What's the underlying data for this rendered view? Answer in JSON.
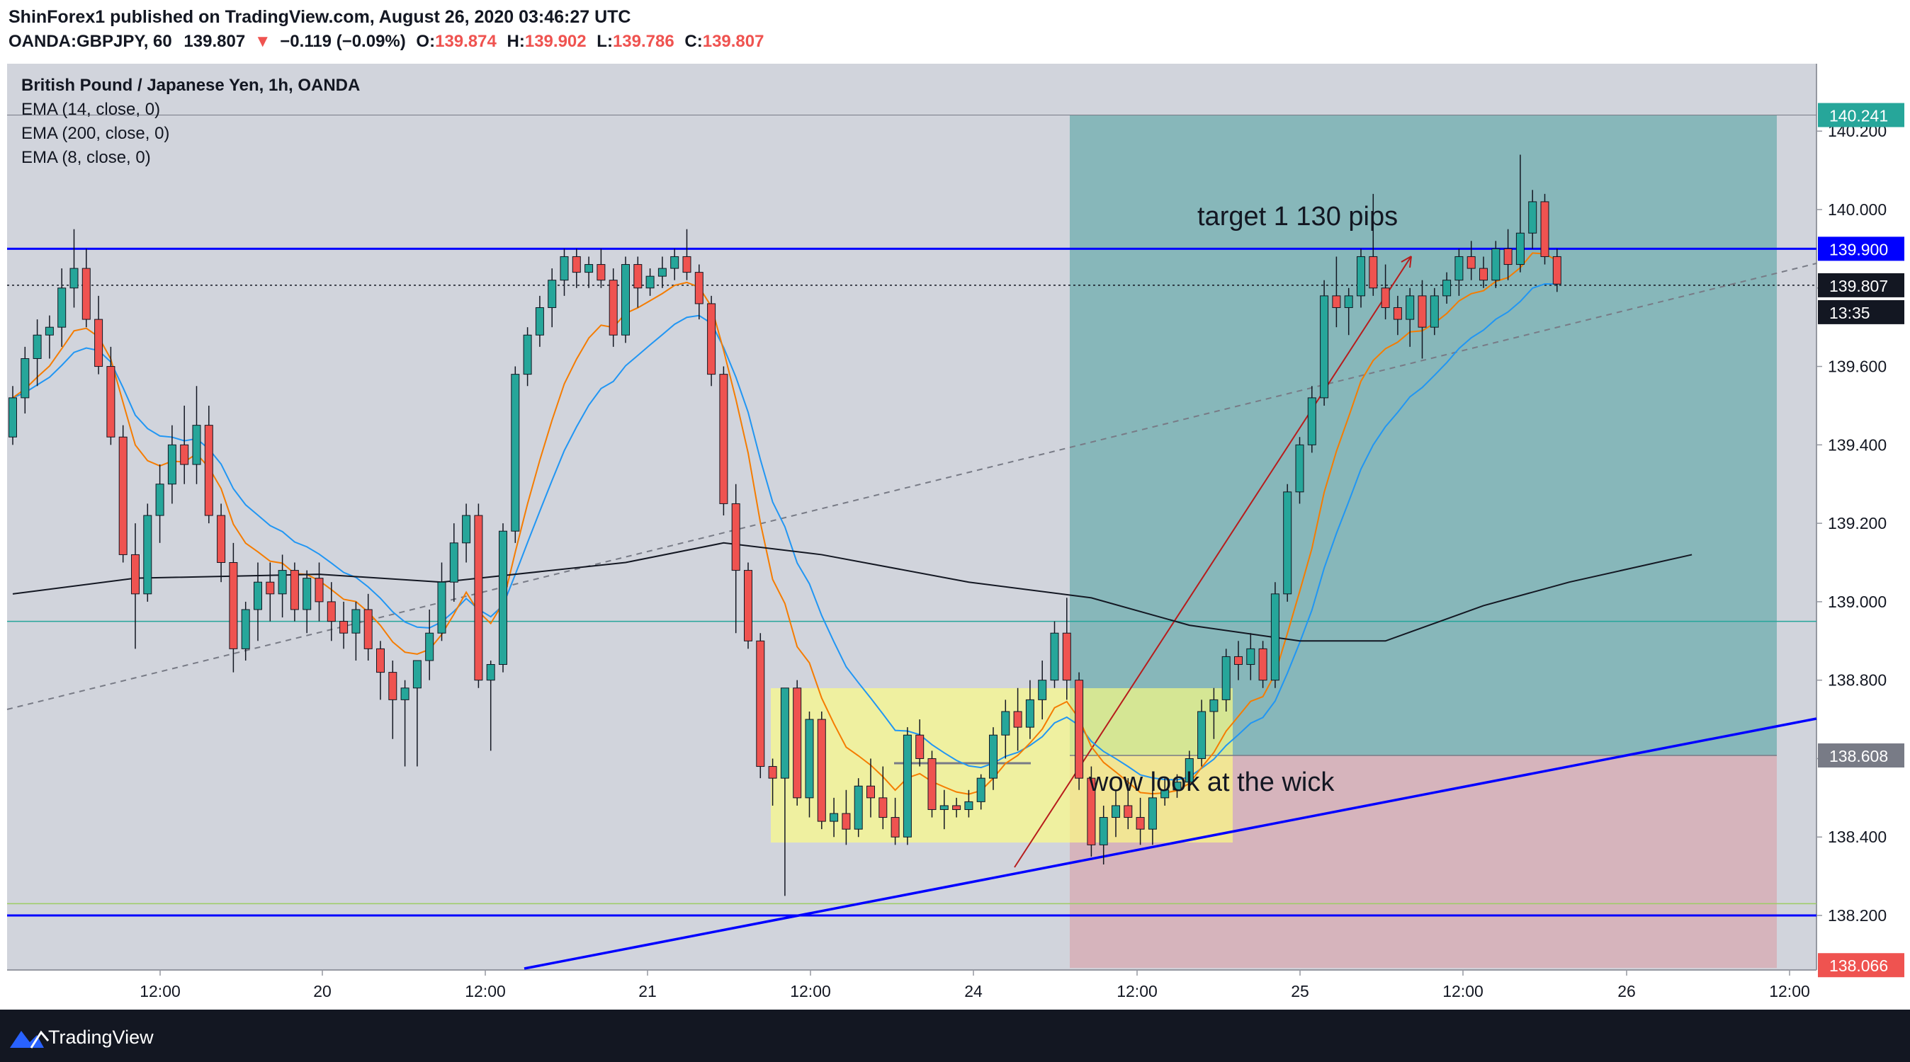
{
  "header": {
    "publisher_line": "ShinForex1 published on TradingView.com, August 26, 2020 03:46:27 UTC",
    "symbol": "OANDA:GBPJPY, 60",
    "last": "139.807",
    "change": "−0.119 (−0.09%)",
    "o_label": "O:",
    "o": "139.874",
    "h_label": "H:",
    "h": "139.902",
    "l_label": "L:",
    "l": "139.786",
    "c_label": "C:",
    "c": "139.807"
  },
  "legend": {
    "title": "British Pound / Japanese Yen, 1h, OANDA",
    "ema1": "EMA (14, close, 0)",
    "ema2": "EMA (200, close, 0)",
    "ema3": "EMA (8, close, 0)"
  },
  "annotations": {
    "target": "target 1 130 pips",
    "wick": "wow look at the wick"
  },
  "badges": {
    "top": "140.241",
    "resistance": "139.900",
    "current": "139.807",
    "countdown": "13:35",
    "entry": "138.608",
    "stop": "138.066"
  },
  "footer": {
    "brand": "TradingView"
  },
  "colors": {
    "bg": "#d1d4dc",
    "up": "#26a69a",
    "down": "#ef5350",
    "ema14": "#2196f3",
    "ema8": "#f57c00",
    "ema200": "#131722",
    "hline": "#0000ff",
    "profit": "#4a9f9f",
    "loss": "#d99ea6",
    "zone": "#ffff80"
  },
  "chart_data": {
    "type": "candlestick",
    "title": "British Pound / Japanese Yen, 1h, OANDA",
    "ylim": [
      138.02,
      140.32
    ],
    "y_ticks": [
      "140.200",
      "140.000",
      "139.800",
      "139.600",
      "139.400",
      "139.200",
      "139.000",
      "138.800",
      "138.600",
      "138.400",
      "138.200"
    ],
    "x_ticks": [
      "12:00",
      "20",
      "12:00",
      "21",
      "12:00",
      "24",
      "12:00",
      "25",
      "12:00",
      "26",
      "12:00"
    ],
    "candles_x": [
      "Aug 19 02:00",
      "Aug 26 05:00"
    ],
    "candles": [
      [
        139.42,
        139.55,
        139.4,
        139.52
      ],
      [
        139.52,
        139.65,
        139.48,
        139.62
      ],
      [
        139.62,
        139.72,
        139.55,
        139.68
      ],
      [
        139.68,
        139.73,
        139.62,
        139.7
      ],
      [
        139.7,
        139.85,
        139.65,
        139.8
      ],
      [
        139.8,
        139.95,
        139.75,
        139.85
      ],
      [
        139.85,
        139.9,
        139.7,
        139.72
      ],
      [
        139.72,
        139.78,
        139.58,
        139.6
      ],
      [
        139.6,
        139.65,
        139.4,
        139.42
      ],
      [
        139.42,
        139.45,
        139.1,
        139.12
      ],
      [
        139.12,
        139.2,
        138.88,
        139.02
      ],
      [
        139.02,
        139.25,
        139.0,
        139.22
      ],
      [
        139.22,
        139.35,
        139.15,
        139.3
      ],
      [
        139.3,
        139.45,
        139.25,
        139.4
      ],
      [
        139.4,
        139.5,
        139.3,
        139.35
      ],
      [
        139.35,
        139.55,
        139.3,
        139.45
      ],
      [
        139.45,
        139.5,
        139.2,
        139.22
      ],
      [
        139.22,
        139.25,
        139.05,
        139.1
      ],
      [
        139.1,
        139.15,
        138.82,
        138.88
      ],
      [
        138.88,
        139.0,
        138.85,
        138.98
      ],
      [
        138.98,
        139.1,
        138.9,
        139.05
      ],
      [
        139.05,
        139.1,
        138.95,
        139.02
      ],
      [
        139.02,
        139.12,
        138.96,
        139.08
      ],
      [
        139.08,
        139.1,
        138.95,
        138.98
      ],
      [
        138.98,
        139.08,
        138.92,
        139.06
      ],
      [
        139.06,
        139.1,
        138.95,
        139.0
      ],
      [
        139.0,
        139.05,
        138.9,
        138.95
      ],
      [
        138.95,
        139.0,
        138.88,
        138.92
      ],
      [
        138.92,
        139.0,
        138.85,
        138.98
      ],
      [
        138.98,
        139.02,
        138.85,
        138.88
      ],
      [
        138.88,
        138.9,
        138.75,
        138.82
      ],
      [
        138.82,
        138.85,
        138.65,
        138.75
      ],
      [
        138.75,
        138.8,
        138.58,
        138.78
      ],
      [
        138.78,
        138.85,
        138.58,
        138.85
      ],
      [
        138.85,
        138.98,
        138.8,
        138.92
      ],
      [
        138.92,
        139.1,
        138.9,
        139.05
      ],
      [
        139.05,
        139.2,
        139.0,
        139.15
      ],
      [
        139.15,
        139.25,
        139.1,
        139.22
      ],
      [
        139.22,
        139.25,
        138.78,
        138.8
      ],
      [
        138.8,
        138.85,
        138.62,
        138.84
      ],
      [
        138.84,
        139.2,
        138.82,
        139.18
      ],
      [
        139.18,
        139.6,
        139.15,
        139.58
      ],
      [
        139.58,
        139.7,
        139.55,
        139.68
      ],
      [
        139.68,
        139.78,
        139.65,
        139.75
      ],
      [
        139.75,
        139.85,
        139.7,
        139.82
      ],
      [
        139.82,
        139.9,
        139.78,
        139.88
      ],
      [
        139.88,
        139.9,
        139.8,
        139.84
      ],
      [
        139.84,
        139.88,
        139.8,
        139.86
      ],
      [
        139.86,
        139.9,
        139.8,
        139.82
      ],
      [
        139.82,
        139.85,
        139.65,
        139.68
      ],
      [
        139.68,
        139.88,
        139.66,
        139.86
      ],
      [
        139.86,
        139.88,
        139.75,
        139.8
      ],
      [
        139.8,
        139.85,
        139.78,
        139.83
      ],
      [
        139.83,
        139.88,
        139.8,
        139.85
      ],
      [
        139.85,
        139.9,
        139.82,
        139.88
      ],
      [
        139.88,
        139.95,
        139.82,
        139.84
      ],
      [
        139.84,
        139.86,
        139.72,
        139.76
      ],
      [
        139.76,
        139.78,
        139.55,
        139.58
      ],
      [
        139.58,
        139.6,
        139.22,
        139.25
      ],
      [
        139.25,
        139.3,
        138.92,
        139.08
      ],
      [
        139.08,
        139.1,
        138.88,
        138.9
      ],
      [
        138.9,
        138.92,
        138.55,
        138.58
      ],
      [
        138.58,
        138.6,
        138.48,
        138.55
      ],
      [
        138.55,
        138.78,
        138.25,
        138.78
      ],
      [
        138.78,
        138.8,
        138.48,
        138.5
      ],
      [
        138.5,
        138.72,
        138.45,
        138.7
      ],
      [
        138.7,
        138.72,
        138.42,
        138.44
      ],
      [
        138.44,
        138.5,
        138.4,
        138.46
      ],
      [
        138.46,
        138.52,
        138.38,
        138.42
      ],
      [
        138.42,
        138.55,
        138.4,
        138.53
      ],
      [
        138.53,
        138.6,
        138.45,
        138.5
      ],
      [
        138.5,
        138.58,
        138.42,
        138.45
      ],
      [
        138.45,
        138.5,
        138.38,
        138.4
      ],
      [
        138.4,
        138.68,
        138.38,
        138.66
      ],
      [
        138.66,
        138.7,
        138.58,
        138.6
      ],
      [
        138.6,
        138.62,
        138.45,
        138.47
      ],
      [
        138.47,
        138.52,
        138.42,
        138.48
      ],
      [
        138.48,
        138.5,
        138.45,
        138.47
      ],
      [
        138.47,
        138.52,
        138.45,
        138.49
      ],
      [
        138.49,
        138.56,
        138.47,
        138.55
      ],
      [
        138.55,
        138.68,
        138.52,
        138.66
      ],
      [
        138.66,
        138.75,
        138.6,
        138.72
      ],
      [
        138.72,
        138.78,
        138.62,
        138.68
      ],
      [
        138.68,
        138.8,
        138.65,
        138.75
      ],
      [
        138.75,
        138.85,
        138.7,
        138.8
      ],
      [
        138.8,
        138.95,
        138.78,
        138.92
      ],
      [
        138.92,
        139.01,
        138.75,
        138.8
      ],
      [
        138.8,
        138.82,
        138.52,
        138.55
      ],
      [
        138.55,
        138.58,
        138.35,
        138.38
      ],
      [
        138.38,
        138.48,
        138.33,
        138.45
      ],
      [
        138.45,
        138.52,
        138.4,
        138.48
      ],
      [
        138.48,
        138.55,
        138.42,
        138.45
      ],
      [
        138.45,
        138.5,
        138.38,
        138.42
      ],
      [
        138.42,
        138.52,
        138.38,
        138.5
      ],
      [
        138.5,
        138.55,
        138.48,
        138.52
      ],
      [
        138.52,
        138.56,
        138.5,
        138.54
      ],
      [
        138.54,
        138.62,
        138.52,
        138.6
      ],
      [
        138.6,
        138.75,
        138.58,
        138.72
      ],
      [
        138.72,
        138.78,
        138.65,
        138.75
      ],
      [
        138.75,
        138.88,
        138.72,
        138.86
      ],
      [
        138.86,
        138.9,
        138.8,
        138.84
      ],
      [
        138.84,
        138.92,
        138.8,
        138.88
      ],
      [
        138.88,
        138.9,
        138.78,
        138.8
      ],
      [
        138.8,
        139.05,
        138.78,
        139.02
      ],
      [
        139.02,
        139.3,
        139.0,
        139.28
      ],
      [
        139.28,
        139.42,
        139.25,
        139.4
      ],
      [
        139.4,
        139.55,
        139.38,
        139.52
      ],
      [
        139.52,
        139.82,
        139.5,
        139.78
      ],
      [
        139.78,
        139.88,
        139.7,
        139.75
      ],
      [
        139.75,
        139.8,
        139.68,
        139.78
      ],
      [
        139.78,
        139.9,
        139.75,
        139.88
      ],
      [
        139.88,
        140.04,
        139.78,
        139.8
      ],
      [
        139.8,
        139.86,
        139.72,
        139.75
      ],
      [
        139.75,
        139.78,
        139.68,
        139.72
      ],
      [
        139.72,
        139.8,
        139.65,
        139.78
      ],
      [
        139.78,
        139.82,
        139.62,
        139.7
      ],
      [
        139.7,
        139.8,
        139.68,
        139.78
      ],
      [
        139.78,
        139.84,
        139.76,
        139.82
      ],
      [
        139.82,
        139.9,
        139.78,
        139.88
      ],
      [
        139.88,
        139.92,
        139.82,
        139.85
      ],
      [
        139.85,
        139.88,
        139.8,
        139.82
      ],
      [
        139.82,
        139.92,
        139.8,
        139.9
      ],
      [
        139.9,
        139.95,
        139.82,
        139.86
      ],
      [
        139.86,
        140.14,
        139.84,
        139.94
      ],
      [
        139.94,
        140.05,
        139.9,
        140.02
      ],
      [
        140.02,
        140.04,
        139.86,
        139.88
      ],
      [
        139.88,
        139.9,
        139.79,
        139.81
      ]
    ],
    "lines": {
      "resistance": 139.9,
      "support": 138.2,
      "current": 139.807,
      "entry": 138.608,
      "target": 140.241,
      "stop": 138.066,
      "green_h": 138.95,
      "lime_h": 138.23
    },
    "ema200": [
      [
        0,
        139.02
      ],
      [
        10,
        139.06
      ],
      [
        25,
        139.07
      ],
      [
        35,
        139.05
      ],
      [
        50,
        139.1
      ],
      [
        58,
        139.15
      ],
      [
        66,
        139.12
      ],
      [
        78,
        139.05
      ],
      [
        88,
        139.01
      ],
      [
        96,
        138.94
      ],
      [
        105,
        138.9
      ],
      [
        112,
        138.9
      ],
      [
        120,
        138.99
      ],
      [
        127,
        139.05
      ],
      [
        137,
        139.12
      ]
    ]
  }
}
